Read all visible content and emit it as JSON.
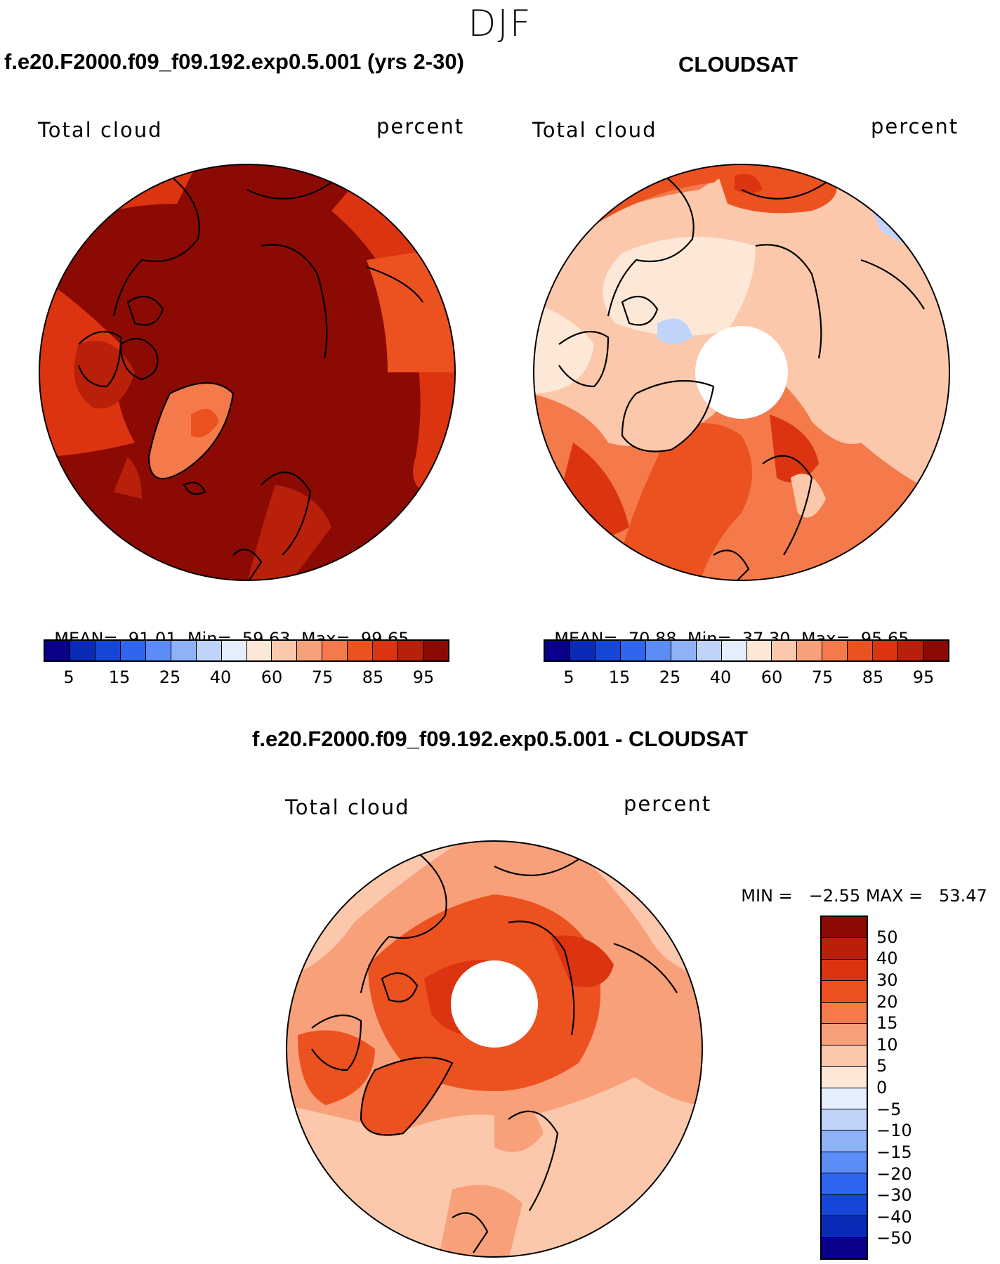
{
  "season": "DJF",
  "panels": [
    {
      "title": "f.e20.F2000.f09_f09.192.exp0.5.001 (yrs 2-30)",
      "left_label": "Total cloud",
      "right_label": "percent",
      "stats": {
        "mean_label": "MEAN=",
        "mean": "91.01",
        "min_label": "Min=",
        "min": "59.63",
        "max_label": "Max=",
        "max": "99.65"
      }
    },
    {
      "title": "CLOUDSAT",
      "left_label": "Total cloud",
      "right_label": "percent",
      "stats": {
        "mean_label": "MEAN=",
        "mean": "70.88",
        "min_label": "Min=",
        "min": "37.30",
        "max_label": "Max=",
        "max": "95.65"
      }
    }
  ],
  "top_colorbar": {
    "colors": [
      "#08008c",
      "#0a2ab8",
      "#1446d8",
      "#2e66f0",
      "#5c8cf6",
      "#8eb2f8",
      "#c0d4fa",
      "#e4eefc",
      "#fde8d8",
      "#fbc8ac",
      "#f8a07a",
      "#f47a4c",
      "#ec5220",
      "#dc3410",
      "#b8200a",
      "#8c0a04"
    ],
    "tick_labels": [
      "5",
      "15",
      "25",
      "40",
      "60",
      "75",
      "85",
      "95"
    ]
  },
  "diff_panel": {
    "title": "f.e20.F2000.f09_f09.192.exp0.5.001 - CLOUDSAT",
    "left_label": "Total cloud",
    "right_label": "percent",
    "stats": {
      "min_label": "MIN =",
      "min": "−2.55",
      "max_label": "MAX =",
      "max": "53.47"
    }
  },
  "diff_colorbar": {
    "colors": [
      "#8c0a04",
      "#b8200a",
      "#dc3410",
      "#ec5220",
      "#f47a4c",
      "#f8a07a",
      "#fbc8ac",
      "#fde8d8",
      "#e4eefc",
      "#c0d4fa",
      "#8eb2f8",
      "#5c8cf6",
      "#2e66f0",
      "#1446d8",
      "#0a2ab8",
      "#08008c"
    ],
    "tick_labels": [
      "50",
      "40",
      "30",
      "20",
      "15",
      "10",
      "5",
      "0",
      "−5",
      "−10",
      "−15",
      "−20",
      "−30",
      "−40",
      "−50"
    ]
  },
  "map_colors": {
    "ctrl_base": "#8c0a04",
    "ctrl_mid": "#b8200a",
    "ctrl_low": "#dc3410",
    "obs_high": "#dc3410",
    "obs_mid": "#f47a4c",
    "obs_low": "#fbc8ac",
    "obs_pale": "#fde8d8",
    "diff_base": "#f8a07a",
    "diff_high": "#ec5220",
    "diff_low": "#fbc8ac",
    "diff_pale": "#fde8d8",
    "land_outline": "#000000"
  }
}
